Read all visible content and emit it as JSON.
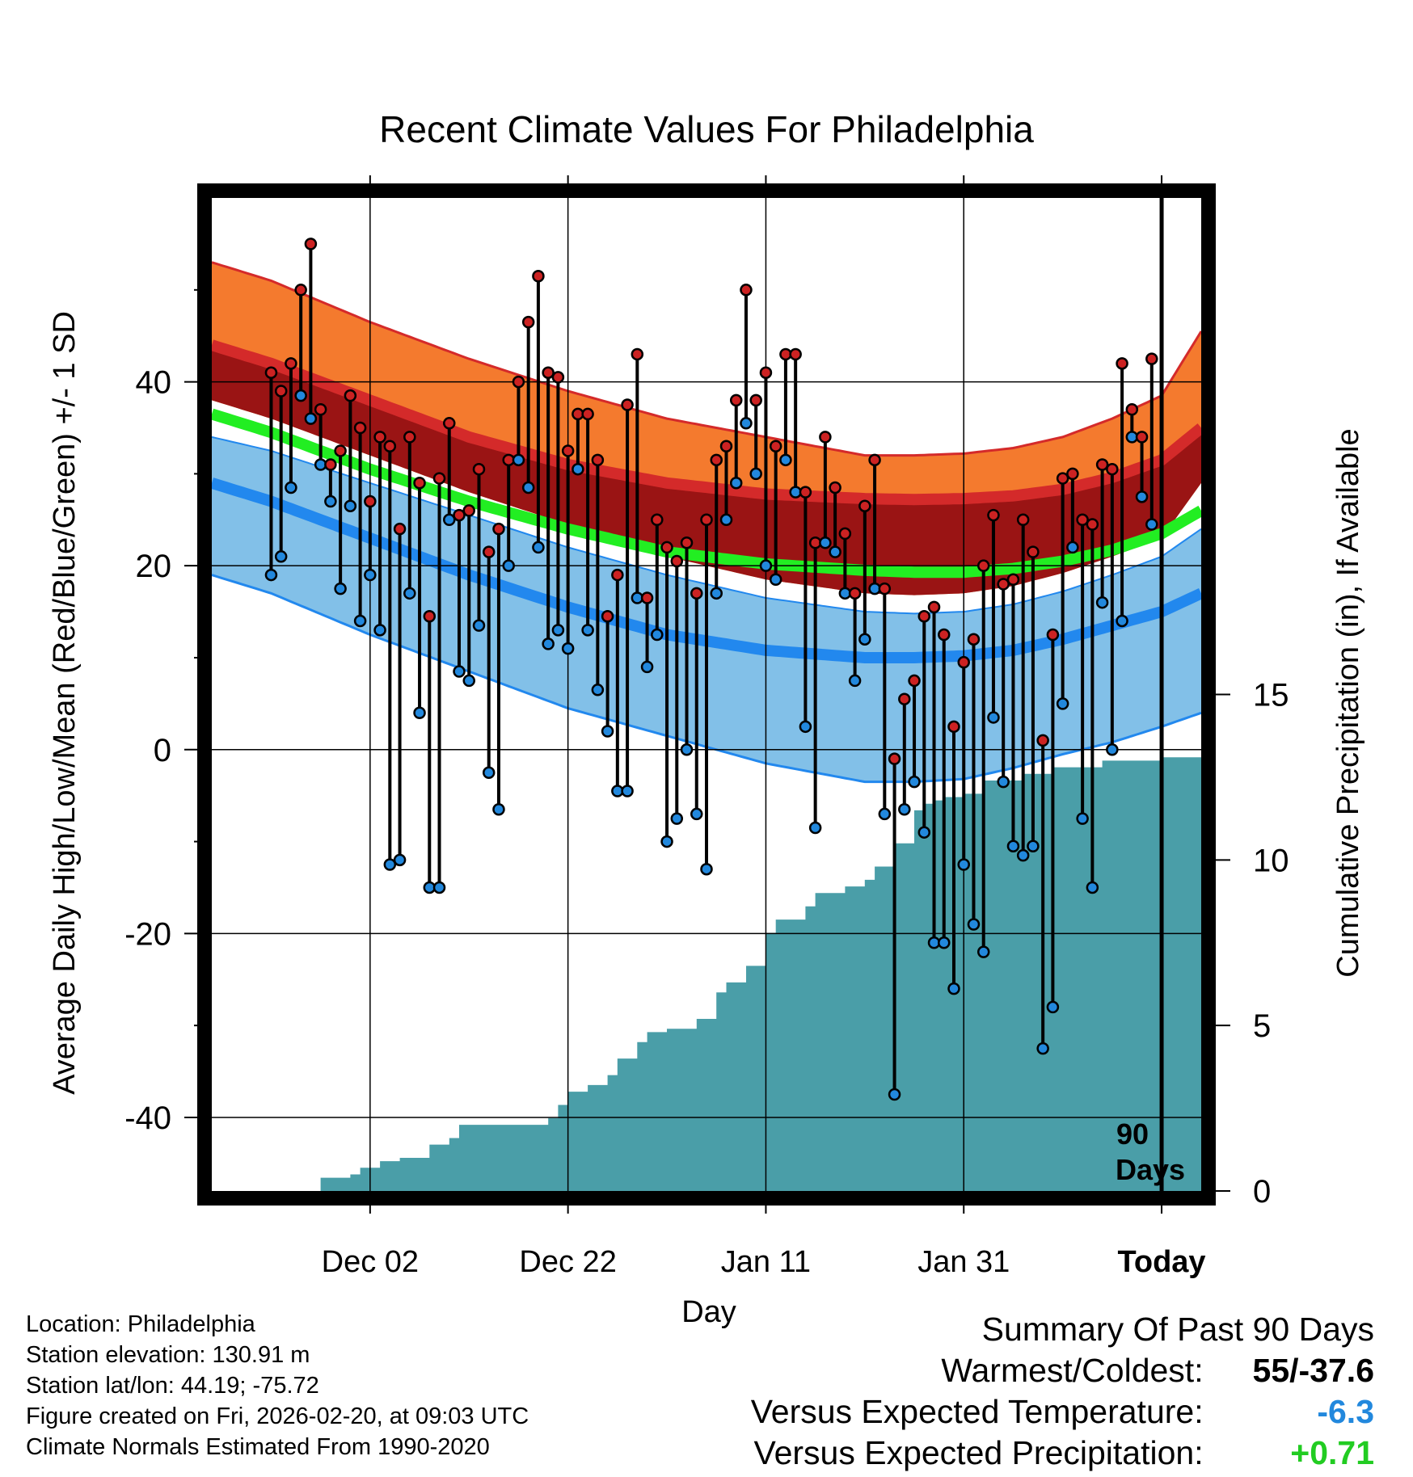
{
  "chart_data": {
    "type": "range-line",
    "title": "Recent Climate Values For Philadelphia",
    "xlabel": "Day",
    "ylabel": "Average Daily High/Low/Mean (Red/Blue/Green) +/- 1 SD",
    "y2label": "Cumulative Precipitation (in), If Available",
    "xlim": [
      -6,
      94
    ],
    "ylim": [
      -48,
      60
    ],
    "y2lim": [
      0,
      30
    ],
    "y_ticks": [
      -40,
      -20,
      0,
      20,
      40
    ],
    "y_tick_labels": [
      "-40",
      "-20",
      "0",
      "20",
      "40"
    ],
    "y2_ticks": [
      0,
      5,
      10,
      15
    ],
    "y2_tick_labels": [
      "0",
      "5",
      "10",
      "15"
    ],
    "x_ticks": [
      10,
      30,
      50,
      70,
      90
    ],
    "x_tick_labels": [
      "Dec 02",
      "Dec 22",
      "Jan 11",
      "Jan 31",
      "Today"
    ],
    "today_index": 90,
    "today_label_line1": "90",
    "today_label_line2": "Days",
    "grid": true,
    "normals": {
      "day": [
        -6,
        0,
        10,
        20,
        30,
        40,
        50,
        60,
        65,
        70,
        75,
        80,
        85,
        90,
        94
      ],
      "high_plus_sd": [
        53,
        51,
        46.5,
        42.5,
        39,
        36,
        34,
        32,
        32,
        32.2,
        32.8,
        34,
        36,
        38.5,
        45.5
      ],
      "high": [
        44,
        42,
        38,
        34,
        31,
        29,
        27.8,
        27.3,
        27.2,
        27.3,
        27.6,
        28.3,
        29.6,
        31.5,
        35
      ],
      "mean": [
        36.5,
        34.5,
        30.5,
        27,
        24,
        21.5,
        20.2,
        19.5,
        19.3,
        19.3,
        19.7,
        20.5,
        21.7,
        23.5,
        26
      ],
      "high_minus_sd": [
        38,
        36,
        32,
        28,
        24.5,
        21,
        18.5,
        17,
        16.8,
        17,
        17.8,
        19.2,
        21,
        23,
        29
      ],
      "low_plus_sd": [
        34,
        32.5,
        29,
        25.5,
        22,
        19,
        16.5,
        15,
        14.8,
        15,
        15.8,
        17.2,
        19,
        21,
        24
      ],
      "low": [
        29,
        27,
        23,
        19,
        15.5,
        12.5,
        10.8,
        10,
        10,
        10.2,
        10.8,
        12,
        13.5,
        15,
        17
      ],
      "low_minus_sd": [
        19,
        17,
        12.5,
        8.5,
        4.5,
        1.5,
        -1.5,
        -3.5,
        -3.5,
        -3.2,
        -2,
        -0.5,
        0.8,
        2.5,
        4
      ]
    },
    "series": [
      {
        "name": "High",
        "color": "#cc2222",
        "values": [
          41,
          39,
          42,
          50,
          55,
          37,
          31,
          32.5,
          38.5,
          35,
          27,
          34,
          33,
          24,
          34,
          29,
          14.5,
          29.5,
          35.5,
          25.5,
          26,
          30.5,
          21.5,
          24,
          31.5,
          40,
          46.5,
          51.5,
          41,
          40.5,
          32.5,
          36.5,
          36.5,
          31.5,
          14.5,
          19,
          37.5,
          43,
          16.5,
          25,
          22,
          20.5,
          22.5,
          17,
          25,
          31.5,
          33,
          38,
          50,
          38,
          41,
          33,
          43,
          43,
          28,
          22.5,
          34,
          28.5,
          23.5,
          17,
          26.5,
          31.5,
          17.5,
          -1,
          5.5,
          7.5,
          14.5,
          15.5,
          12.5,
          2.5,
          9.5,
          12,
          20,
          25.5,
          18,
          18.5,
          25,
          21.5,
          1,
          12.5,
          29.5,
          30,
          25,
          24.5,
          31,
          30.5,
          42,
          37,
          34,
          42.5
        ]
      },
      {
        "name": "Low",
        "color": "#2288dd",
        "values": [
          19,
          21,
          28.5,
          38.5,
          36,
          31,
          27,
          17.5,
          26.5,
          14,
          19,
          13,
          -12.5,
          -12,
          17,
          4,
          -15,
          -15,
          25,
          8.5,
          7.5,
          13.5,
          -2.5,
          -6.5,
          20,
          31.5,
          28.5,
          22,
          11.5,
          13,
          11,
          30.5,
          13,
          6.5,
          2,
          -4.5,
          -4.5,
          16.5,
          9,
          12.5,
          -10,
          -7.5,
          0,
          -7,
          -13,
          17,
          25,
          29,
          35.5,
          30,
          20,
          18.5,
          31.5,
          28,
          2.5,
          -8.5,
          22.5,
          21.5,
          17,
          7.5,
          12,
          17.5,
          -7,
          -37.5,
          -6.5,
          -3.5,
          -9,
          -21,
          -21,
          -26,
          -12.5,
          -19,
          -22,
          3.5,
          -3.5,
          -10.5,
          -11.5,
          -10.5,
          -32.5,
          -28,
          5,
          22,
          -7.5,
          -15,
          16,
          0,
          14,
          34,
          27.5,
          24.5
        ]
      }
    ],
    "precip": {
      "name": "Cumulative Precipitation",
      "color": "#4a9ea8",
      "day": [
        0,
        4,
        5,
        8,
        9,
        11,
        13,
        14,
        16,
        18,
        19,
        28,
        29,
        30,
        32,
        34,
        35,
        37,
        38,
        40,
        43,
        45,
        46,
        48,
        50,
        51,
        54,
        55,
        58,
        60,
        61,
        63,
        65,
        66,
        67,
        68,
        70,
        72,
        76,
        79,
        84,
        90,
        94
      ],
      "values": [
        0,
        0,
        0.4,
        0.5,
        0.7,
        0.9,
        1.0,
        1.0,
        1.4,
        1.6,
        2.0,
        2.2,
        2.6,
        3.0,
        3.2,
        3.5,
        4.0,
        4.5,
        4.8,
        4.9,
        5.2,
        6.0,
        6.3,
        6.8,
        7.8,
        8.2,
        8.6,
        9.0,
        9.2,
        9.4,
        9.8,
        10.5,
        11.5,
        11.7,
        11.8,
        11.9,
        12.0,
        12.4,
        12.6,
        12.8,
        13.0,
        13.1,
        13.1
      ]
    }
  },
  "info": {
    "location": "Location: Philadelphia",
    "elevation": "Station elevation: 130.91 m",
    "latlon": "Station lat/lon: 44.19; -75.72",
    "created": "Figure created on Fri, 2026-02-20, at 09:03 UTC",
    "normals": "Climate Normals Estimated From 1990-2020"
  },
  "summary": {
    "title": "Summary Of Past 90 Days",
    "warmest_label": "Warmest/Coldest:",
    "warmest_value": "55/-37.6",
    "temp_label": "Versus Expected Temperature:",
    "temp_value": "-6.3",
    "temp_color": "#2288dd",
    "precip_label": "Versus Expected Precipitation:",
    "precip_value": "+0.71",
    "precip_color": "#22cc22"
  },
  "colors": {
    "band_high": "#f47a2e",
    "line_high": "#d42a2a",
    "band_mid": "#9a1414",
    "line_mean": "#22ee22",
    "band_low": "#82c0e8",
    "line_low": "#2288ee"
  }
}
